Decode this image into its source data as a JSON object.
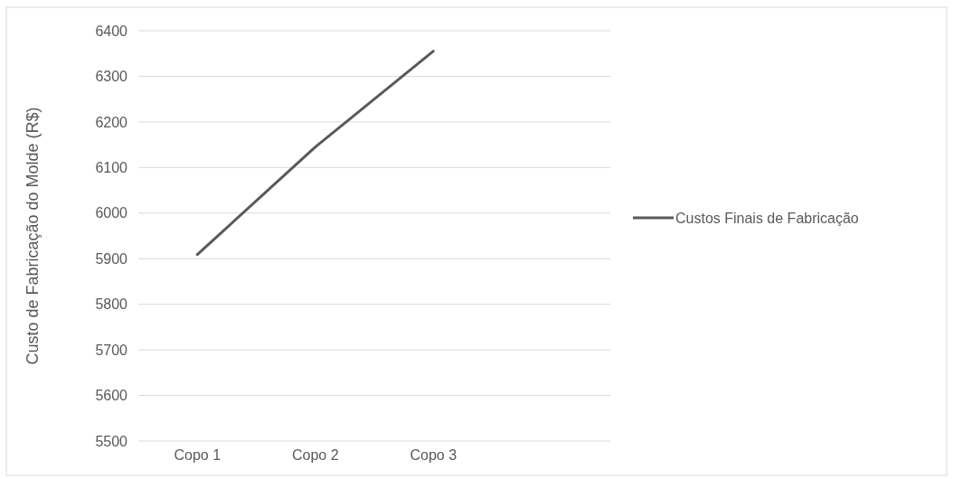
{
  "chart_data": {
    "type": "line",
    "ylabel": "Custo de Fabricação do Molde  (R$)",
    "categories": [
      "Copo 1",
      "Copo 2",
      "Copo 3",
      null
    ],
    "series": [
      {
        "name": "Custos Finais de Fabricação",
        "color": "#595959",
        "values": [
          5909,
          6145,
          6355,
          null
        ]
      }
    ],
    "ylim": [
      5500,
      6400
    ],
    "yticks": [
      5500,
      5600,
      5700,
      5800,
      5900,
      6000,
      6100,
      6200,
      6300,
      6400
    ],
    "grid": "y",
    "legend": "right",
    "marker": "none",
    "line_style": "solid"
  }
}
